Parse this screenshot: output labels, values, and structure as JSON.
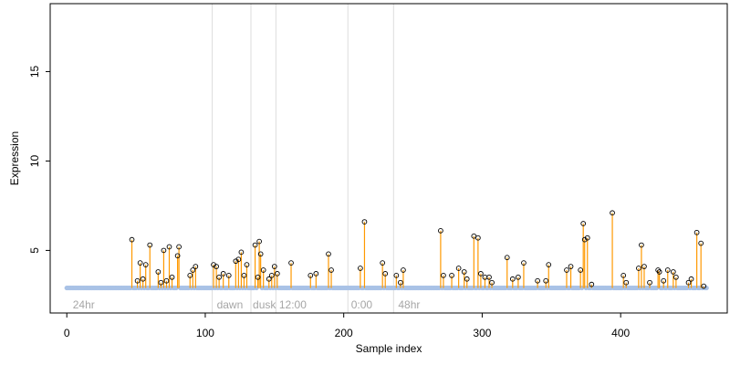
{
  "chart_data": {
    "type": "scatter",
    "xlabel": "Sample index",
    "ylabel": "Expression",
    "xlim": [
      -12,
      477
    ],
    "ylim": [
      1.5,
      18.8
    ],
    "x_ticks": [
      0,
      100,
      200,
      300,
      400
    ],
    "y_ticks": [
      5,
      10,
      15
    ],
    "baseline": 2.9,
    "colors": {
      "stem": "#ff9900",
      "baseline_points": "#a9c2e6",
      "point_edge": "#000000",
      "divider": "#dddddd",
      "region_label": "#a6a6a6"
    },
    "region_dividers": [
      105,
      133,
      151,
      203,
      236
    ],
    "region_labels": [
      {
        "x": 3,
        "text": "24hr"
      },
      {
        "x": 107,
        "text": "dawn"
      },
      {
        "x": 133,
        "text": "dusk"
      },
      {
        "x": 152,
        "text": "12:00"
      },
      {
        "x": 204,
        "text": "0:00"
      },
      {
        "x": 238,
        "text": "48hr"
      }
    ],
    "highlighted_points": [
      {
        "x": 47,
        "y": 5.6
      },
      {
        "x": 51,
        "y": 3.3
      },
      {
        "x": 53,
        "y": 4.3
      },
      {
        "x": 55,
        "y": 3.4
      },
      {
        "x": 57,
        "y": 4.2
      },
      {
        "x": 60,
        "y": 5.3
      },
      {
        "x": 66,
        "y": 3.8
      },
      {
        "x": 68,
        "y": 3.2
      },
      {
        "x": 70,
        "y": 5.0
      },
      {
        "x": 72,
        "y": 3.3
      },
      {
        "x": 74,
        "y": 5.2
      },
      {
        "x": 76,
        "y": 3.5
      },
      {
        "x": 80,
        "y": 4.7
      },
      {
        "x": 81,
        "y": 5.2
      },
      {
        "x": 89,
        "y": 3.6
      },
      {
        "x": 91,
        "y": 3.9
      },
      {
        "x": 93,
        "y": 4.1
      },
      {
        "x": 106,
        "y": 4.2
      },
      {
        "x": 108,
        "y": 4.1
      },
      {
        "x": 110,
        "y": 3.5
      },
      {
        "x": 113,
        "y": 3.7
      },
      {
        "x": 117,
        "y": 3.6
      },
      {
        "x": 122,
        "y": 4.4
      },
      {
        "x": 124,
        "y": 4.5
      },
      {
        "x": 126,
        "y": 4.9
      },
      {
        "x": 128,
        "y": 3.6
      },
      {
        "x": 130,
        "y": 4.2
      },
      {
        "x": 136,
        "y": 5.3
      },
      {
        "x": 138,
        "y": 3.5
      },
      {
        "x": 139,
        "y": 5.5
      },
      {
        "x": 140,
        "y": 4.8
      },
      {
        "x": 142,
        "y": 3.9
      },
      {
        "x": 146,
        "y": 3.4
      },
      {
        "x": 148,
        "y": 3.6
      },
      {
        "x": 150,
        "y": 4.1
      },
      {
        "x": 152,
        "y": 3.7
      },
      {
        "x": 162,
        "y": 4.3
      },
      {
        "x": 176,
        "y": 3.6
      },
      {
        "x": 180,
        "y": 3.7
      },
      {
        "x": 189,
        "y": 4.8
      },
      {
        "x": 191,
        "y": 3.9
      },
      {
        "x": 212,
        "y": 4.0
      },
      {
        "x": 215,
        "y": 6.6
      },
      {
        "x": 228,
        "y": 4.3
      },
      {
        "x": 230,
        "y": 3.7
      },
      {
        "x": 238,
        "y": 3.6
      },
      {
        "x": 241,
        "y": 3.2
      },
      {
        "x": 243,
        "y": 3.9
      },
      {
        "x": 270,
        "y": 6.1
      },
      {
        "x": 272,
        "y": 3.6
      },
      {
        "x": 278,
        "y": 3.6
      },
      {
        "x": 283,
        "y": 4.0
      },
      {
        "x": 287,
        "y": 3.8
      },
      {
        "x": 289,
        "y": 3.4
      },
      {
        "x": 294,
        "y": 5.8
      },
      {
        "x": 297,
        "y": 5.7
      },
      {
        "x": 299,
        "y": 3.7
      },
      {
        "x": 302,
        "y": 3.5
      },
      {
        "x": 305,
        "y": 3.5
      },
      {
        "x": 307,
        "y": 3.2
      },
      {
        "x": 318,
        "y": 4.6
      },
      {
        "x": 322,
        "y": 3.4
      },
      {
        "x": 326,
        "y": 3.5
      },
      {
        "x": 330,
        "y": 4.3
      },
      {
        "x": 340,
        "y": 3.3
      },
      {
        "x": 346,
        "y": 3.3
      },
      {
        "x": 348,
        "y": 4.2
      },
      {
        "x": 361,
        "y": 3.9
      },
      {
        "x": 364,
        "y": 4.1
      },
      {
        "x": 371,
        "y": 3.9
      },
      {
        "x": 373,
        "y": 6.5
      },
      {
        "x": 374,
        "y": 5.6
      },
      {
        "x": 376,
        "y": 5.7
      },
      {
        "x": 379,
        "y": 3.1
      },
      {
        "x": 394,
        "y": 7.1
      },
      {
        "x": 402,
        "y": 3.6
      },
      {
        "x": 404,
        "y": 3.2
      },
      {
        "x": 413,
        "y": 4.0
      },
      {
        "x": 415,
        "y": 5.3
      },
      {
        "x": 417,
        "y": 4.1
      },
      {
        "x": 421,
        "y": 3.2
      },
      {
        "x": 427,
        "y": 3.9
      },
      {
        "x": 428,
        "y": 3.8
      },
      {
        "x": 431,
        "y": 3.3
      },
      {
        "x": 434,
        "y": 3.9
      },
      {
        "x": 438,
        "y": 3.8
      },
      {
        "x": 440,
        "y": 3.5
      },
      {
        "x": 449,
        "y": 3.2
      },
      {
        "x": 451,
        "y": 3.4
      },
      {
        "x": 455,
        "y": 6.0
      },
      {
        "x": 458,
        "y": 5.4
      },
      {
        "x": 460,
        "y": 3.0
      }
    ]
  }
}
